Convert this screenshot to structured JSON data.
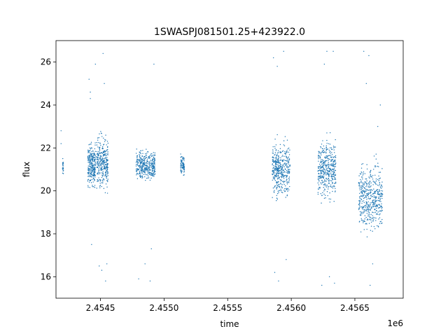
{
  "chart_data": {
    "type": "scatter",
    "title": "1SWASPJ081501.25+423922.0",
    "xlabel": "time",
    "ylabel": "flux",
    "x_offset_label": "1e6",
    "xlim": [
      2.45415,
      2.45688
    ],
    "ylim": [
      15.0,
      27.0
    ],
    "x_ticks": [
      {
        "value": 2.4545,
        "label": "2.4545"
      },
      {
        "value": 2.455,
        "label": "2.4550"
      },
      {
        "value": 2.4555,
        "label": "2.4555"
      },
      {
        "value": 2.456,
        "label": "2.4560"
      },
      {
        "value": 2.4565,
        "label": "2.4565"
      }
    ],
    "y_ticks": [
      {
        "value": 16,
        "label": "16"
      },
      {
        "value": 18,
        "label": "18"
      },
      {
        "value": 20,
        "label": "20"
      },
      {
        "value": 22,
        "label": "22"
      },
      {
        "value": 24,
        "label": "24"
      },
      {
        "value": 26,
        "label": "26"
      }
    ],
    "grid": false,
    "point_color": "#1f77b4",
    "clusters": [
      {
        "x_start": 2.4542,
        "x_end": 2.45421,
        "y_center": 21.1,
        "y_spread": 0.35,
        "count": 25
      },
      {
        "x_start": 2.4544,
        "x_end": 2.45446,
        "y_center": 21.2,
        "y_spread": 0.9,
        "count": 260
      },
      {
        "x_start": 2.45447,
        "x_end": 2.45456,
        "y_center": 21.3,
        "y_spread": 1.1,
        "count": 320
      },
      {
        "x_start": 2.45478,
        "x_end": 2.45493,
        "y_center": 21.2,
        "y_spread": 0.6,
        "count": 380
      },
      {
        "x_start": 2.45513,
        "x_end": 2.45516,
        "y_center": 21.2,
        "y_spread": 0.45,
        "count": 90
      },
      {
        "x_start": 2.45585,
        "x_end": 2.45599,
        "y_center": 21.0,
        "y_spread": 1.1,
        "count": 420
      },
      {
        "x_start": 2.45621,
        "x_end": 2.45635,
        "y_center": 21.0,
        "y_spread": 1.2,
        "count": 420
      },
      {
        "x_start": 2.45653,
        "x_end": 2.45672,
        "y_center": 19.7,
        "y_spread": 1.4,
        "count": 480
      }
    ],
    "outliers": [
      {
        "x": 2.45419,
        "y": 22.8
      },
      {
        "x": 2.45419,
        "y": 22.2
      },
      {
        "x": 2.45441,
        "y": 25.2
      },
      {
        "x": 2.45442,
        "y": 24.6
      },
      {
        "x": 2.45442,
        "y": 24.3
      },
      {
        "x": 2.45443,
        "y": 17.5
      },
      {
        "x": 2.45446,
        "y": 25.9
      },
      {
        "x": 2.45452,
        "y": 26.4
      },
      {
        "x": 2.45453,
        "y": 25.0
      },
      {
        "x": 2.45451,
        "y": 16.3
      },
      {
        "x": 2.45454,
        "y": 15.8
      },
      {
        "x": 2.45455,
        "y": 16.6
      },
      {
        "x": 2.45449,
        "y": 16.5
      },
      {
        "x": 2.4548,
        "y": 15.9
      },
      {
        "x": 2.45489,
        "y": 15.8
      },
      {
        "x": 2.45492,
        "y": 25.9
      },
      {
        "x": 2.4549,
        "y": 17.3
      },
      {
        "x": 2.45485,
        "y": 16.6
      },
      {
        "x": 2.45586,
        "y": 26.2
      },
      {
        "x": 2.45589,
        "y": 25.8
      },
      {
        "x": 2.45587,
        "y": 16.2
      },
      {
        "x": 2.4559,
        "y": 15.8
      },
      {
        "x": 2.45594,
        "y": 26.5
      },
      {
        "x": 2.45596,
        "y": 16.8
      },
      {
        "x": 2.45624,
        "y": 15.6
      },
      {
        "x": 2.45628,
        "y": 26.5
      },
      {
        "x": 2.45633,
        "y": 26.5
      },
      {
        "x": 2.4563,
        "y": 16.0
      },
      {
        "x": 2.45634,
        "y": 15.7
      },
      {
        "x": 2.45626,
        "y": 25.9
      },
      {
        "x": 2.45657,
        "y": 26.5
      },
      {
        "x": 2.45661,
        "y": 26.3
      },
      {
        "x": 2.45662,
        "y": 15.6
      },
      {
        "x": 2.4567,
        "y": 24.0
      },
      {
        "x": 2.45668,
        "y": 23.0
      },
      {
        "x": 2.45659,
        "y": 25.0
      },
      {
        "x": 2.45664,
        "y": 16.6
      }
    ]
  }
}
